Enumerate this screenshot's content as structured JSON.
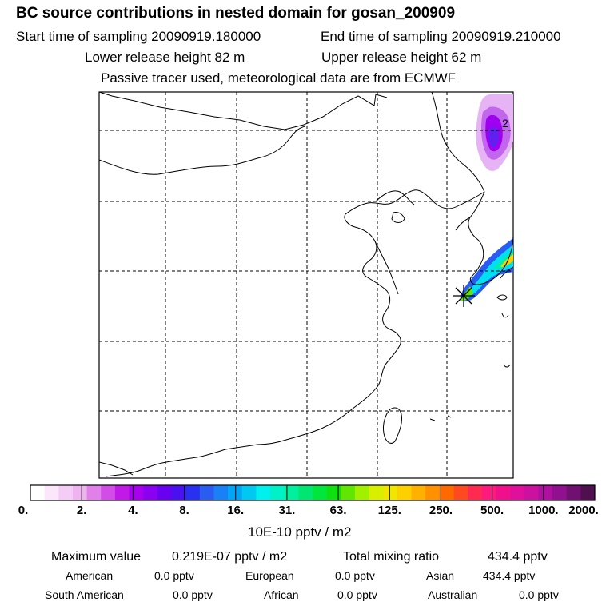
{
  "header": {
    "title": "BC  source contributions in nested domain for gosan_200909",
    "start_time": "Start time of sampling 20090919.180000",
    "end_time": "End time of sampling 20090919.210000",
    "lower_release": "Lower release height   82 m",
    "upper_release": "Upper release height   62 m",
    "note": "Passive tracer used, meteorological data are from ECMWF"
  },
  "map": {
    "contour_label": "2",
    "receptor_marker": "gosan receptor"
  },
  "colorbar": {
    "unit": "10E-10 pptv / m2",
    "ticks": [
      "0.",
      "2.",
      "4.",
      "8.",
      "16.",
      "31.",
      "63.",
      "125.",
      "250.",
      "500.",
      "1000.",
      "2000."
    ],
    "colors": [
      "#ffffff",
      "#fbe6fb",
      "#f5ccf5",
      "#efb3ef",
      "#e080e8",
      "#d24ce8",
      "#c21ae6",
      "#a800ee",
      "#8a00f0",
      "#6a00f0",
      "#4a10f0",
      "#2a30f0",
      "#2b5cf2",
      "#1a80f5",
      "#00a6f5",
      "#00c8f0",
      "#00f0f0",
      "#00f0c8",
      "#00f0a0",
      "#00e670",
      "#00e63c",
      "#10e010",
      "#60e600",
      "#a0f000",
      "#d8f000",
      "#f0e600",
      "#ffd000",
      "#ffb000",
      "#ff9000",
      "#ff6a00",
      "#ff4a20",
      "#ff2a50",
      "#ff1a80",
      "#f0108c",
      "#e0109c",
      "#cc10a0",
      "#b010a0",
      "#901090",
      "#701070",
      "#501050"
    ]
  },
  "summary": {
    "max_label": "Maximum value",
    "max_value": "0.219E-07 pptv / m2",
    "total_label": "Total mixing ratio",
    "total_value": "434.4 pptv",
    "regions": [
      {
        "name": "American",
        "value": "0.0 pptv"
      },
      {
        "name": "European",
        "value": "0.0 pptv"
      },
      {
        "name": "Asian",
        "value": "434.4 pptv"
      },
      {
        "name": "South American",
        "value": "0.0 pptv"
      },
      {
        "name": "African",
        "value": "0.0 pptv"
      },
      {
        "name": "Australian",
        "value": "0.0 pptv"
      }
    ]
  }
}
